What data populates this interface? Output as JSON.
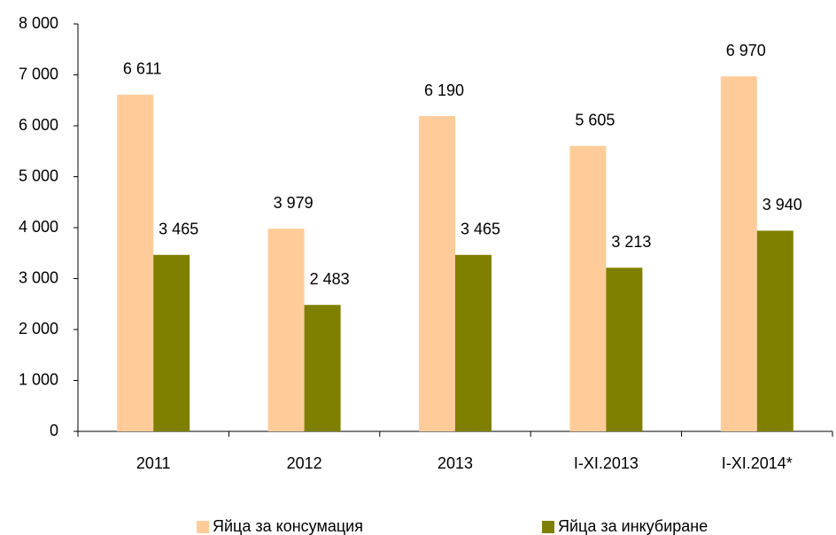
{
  "chart_data": {
    "type": "bar",
    "categories": [
      "2011",
      "2012",
      "2013",
      "I-XI.2013",
      "I-XI.2014*"
    ],
    "series": [
      {
        "name": "Яйца за консумация",
        "color": "#ffcc99",
        "values": [
          6611,
          3979,
          6190,
          5605,
          6970
        ],
        "value_labels": [
          "6 611",
          "3 979",
          "6 190",
          "5 605",
          "6 970"
        ]
      },
      {
        "name": "Яйца за инкубиране",
        "color": "#808000",
        "values": [
          3465,
          2483,
          3465,
          3213,
          3940
        ],
        "value_labels": [
          "3 465",
          "2 483",
          "3 465",
          "3 213",
          "3 940"
        ]
      }
    ],
    "ylim": [
      0,
      8000
    ],
    "yticks": [
      0,
      {
        "value": 1000,
        "label": "1 000"
      },
      {
        "value": 2000,
        "label": "2 000"
      },
      {
        "value": 3000,
        "label": "3 000"
      },
      {
        "value": 4000,
        "label": "4 000"
      },
      {
        "value": 5000,
        "label": "5 000"
      },
      {
        "value": 6000,
        "label": "6 000"
      },
      {
        "value": 7000,
        "label": "7 000"
      },
      {
        "value": 8000,
        "label": "8 000"
      }
    ],
    "grid": false,
    "legend": "bottom"
  }
}
